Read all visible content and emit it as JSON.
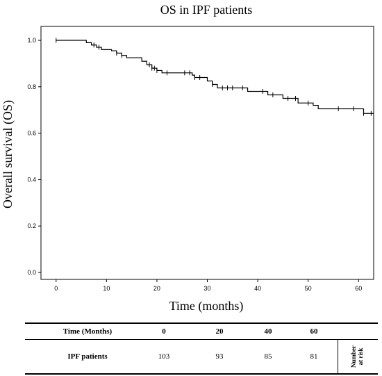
{
  "chart_data": {
    "type": "line",
    "title": "OS in IPF patients",
    "xlabel": "Time (months)",
    "ylabel": "Overall survival (OS)",
    "xlim": [
      -3,
      63
    ],
    "ylim": [
      -0.03,
      1.06
    ],
    "x_ticks": [
      0,
      10,
      20,
      30,
      40,
      50,
      60
    ],
    "y_ticks": [
      0.0,
      0.2,
      0.4,
      0.6,
      0.8,
      1.0
    ],
    "y_tick_labels": [
      "0.0",
      "0.2",
      "0.4",
      "0.6",
      "0.8",
      "1.0"
    ],
    "grid": false,
    "series": [
      {
        "steps": [
          [
            0,
            1.0
          ],
          [
            6,
            0.99
          ],
          [
            7,
            0.98
          ],
          [
            8,
            0.97
          ],
          [
            9,
            0.96
          ],
          [
            11,
            0.955
          ],
          [
            12,
            0.945
          ],
          [
            13,
            0.935
          ],
          [
            14,
            0.925
          ],
          [
            17,
            0.91
          ],
          [
            18,
            0.895
          ],
          [
            19,
            0.88
          ],
          [
            20,
            0.87
          ],
          [
            21,
            0.86
          ],
          [
            27,
            0.85
          ],
          [
            27.5,
            0.84
          ],
          [
            30,
            0.825
          ],
          [
            31,
            0.81
          ],
          [
            32,
            0.795
          ],
          [
            38,
            0.78
          ],
          [
            42,
            0.765
          ],
          [
            45,
            0.75
          ],
          [
            48,
            0.73
          ],
          [
            51,
            0.72
          ],
          [
            52,
            0.705
          ],
          [
            61,
            0.685
          ]
        ],
        "censored": [
          [
            0,
            1.0
          ],
          [
            7.5,
            0.98
          ],
          [
            8.5,
            0.97
          ],
          [
            12,
            0.945
          ],
          [
            13,
            0.935
          ],
          [
            18.5,
            0.895
          ],
          [
            19,
            0.88
          ],
          [
            19.5,
            0.88
          ],
          [
            20,
            0.87
          ],
          [
            22,
            0.86
          ],
          [
            25.5,
            0.86
          ],
          [
            26.5,
            0.86
          ],
          [
            27.5,
            0.84
          ],
          [
            28.5,
            0.84
          ],
          [
            31,
            0.81
          ],
          [
            33,
            0.795
          ],
          [
            34,
            0.795
          ],
          [
            35,
            0.795
          ],
          [
            37,
            0.795
          ],
          [
            41,
            0.78
          ],
          [
            43,
            0.765
          ],
          [
            46,
            0.75
          ],
          [
            47.5,
            0.75
          ],
          [
            50,
            0.73
          ],
          [
            56,
            0.705
          ],
          [
            59,
            0.705
          ],
          [
            61,
            0.685
          ],
          [
            62.5,
            0.685
          ]
        ],
        "end_x": 63
      }
    ]
  },
  "risk_table": {
    "header_label": "Time (Months)",
    "times": [
      "0",
      "20",
      "40",
      "60"
    ],
    "row_label": "IPF patients",
    "counts": [
      "103",
      "93",
      "85",
      "81"
    ],
    "side_label_line1": "Number",
    "side_label_line2": "at risk"
  }
}
